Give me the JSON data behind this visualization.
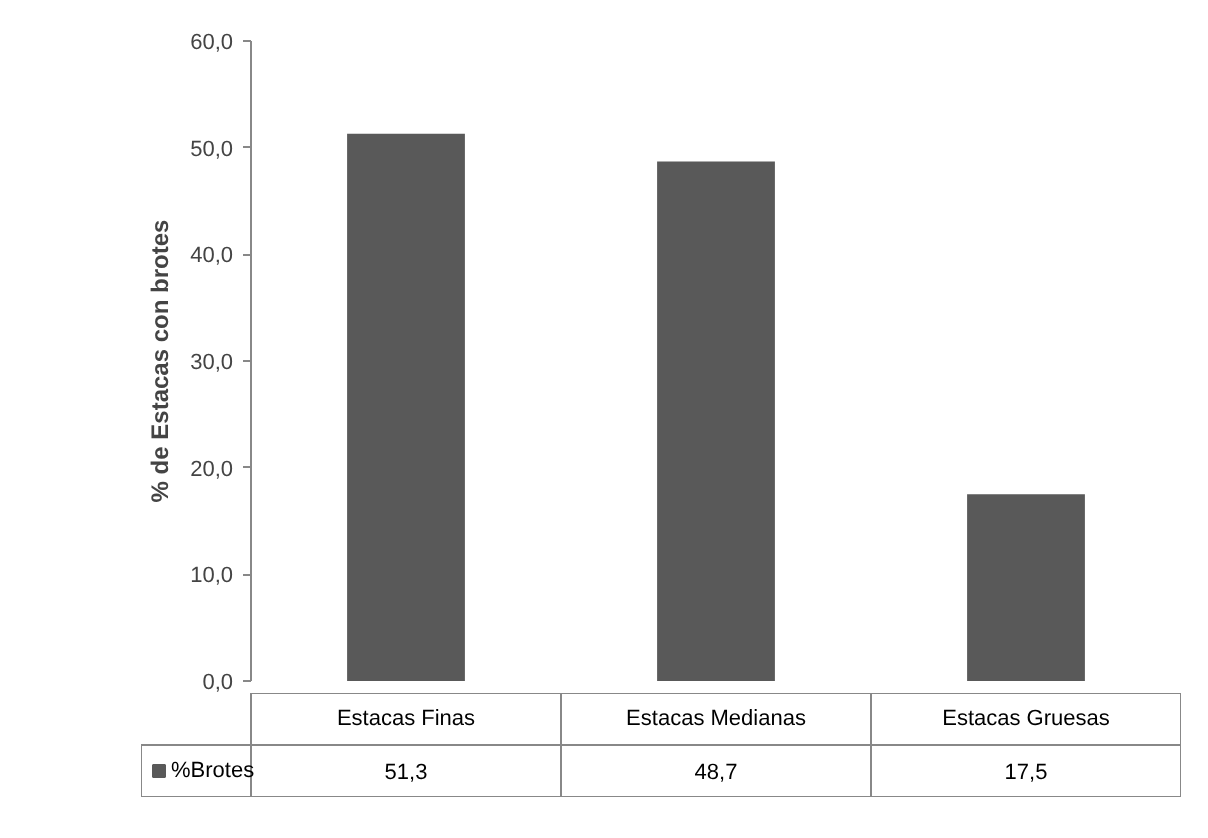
{
  "chart_data": {
    "type": "bar",
    "ylabel": "% de Estacas con brotes",
    "categories": [
      "Estacas Finas",
      "Estacas Medianas",
      "Estacas Gruesas"
    ],
    "series": [
      {
        "name": "%Brotes",
        "color": "#595959",
        "values": [
          51.3,
          48.7,
          17.5
        ],
        "value_labels": [
          "51,3",
          "48,7",
          "17,5"
        ]
      }
    ],
    "ylim": [
      0,
      60
    ],
    "yticks": [
      {
        "value": 0,
        "label": "0,0"
      },
      {
        "value": 10,
        "label": "10,0"
      },
      {
        "value": 20,
        "label": "20,0"
      },
      {
        "value": 30,
        "label": "30,0"
      },
      {
        "value": 40,
        "label": "40,0"
      },
      {
        "value": 50,
        "label": "50,0"
      },
      {
        "value": 60,
        "label": "60,0"
      }
    ],
    "grid": false,
    "legend": "bottom"
  }
}
